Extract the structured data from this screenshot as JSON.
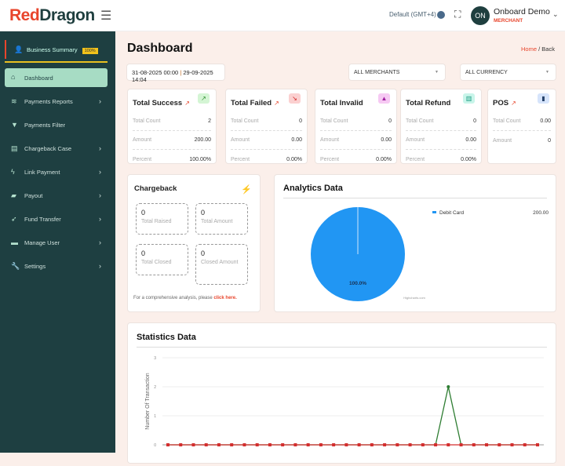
{
  "header": {
    "logo": "RedDragon",
    "timezone": "Default (GMT+4)",
    "user_initials": "ON",
    "user_name": "Onboard Demo",
    "user_role": "MERCHANT"
  },
  "sidebar": {
    "business_summary": "Business Summary",
    "badge": "100%",
    "dashboard": "Dashboard",
    "items": [
      {
        "label": "Payments Reports",
        "icon": "layers-icon",
        "chevron": true
      },
      {
        "label": "Payments Filter",
        "icon": "filter-icon",
        "chevron": false
      },
      {
        "label": "Chargeback Case",
        "icon": "document-icon",
        "chevron": true
      },
      {
        "label": "Link Payment",
        "icon": "bolt-icon",
        "chevron": true
      },
      {
        "label": "Payout",
        "icon": "bag-icon",
        "chevron": true
      },
      {
        "label": "Fund Transfer",
        "icon": "rocket-icon",
        "chevron": true
      },
      {
        "label": "Manage User",
        "icon": "briefcase-icon",
        "chevron": true
      },
      {
        "label": "Settings",
        "icon": "wrench-icon",
        "chevron": true
      }
    ]
  },
  "page": {
    "title": "Dashboard",
    "breadcrumb_home": "Home",
    "breadcrumb_current": "/ Back",
    "date_from": "31-08-2025 00:00",
    "date_sep": "|",
    "date_to": "29-09-2025 14:04",
    "merchant_select": "ALL MERCHANTS",
    "currency_select": "ALL CURRENCY"
  },
  "cards": [
    {
      "title": "Total Success",
      "ext": true,
      "icon_color": "#d4f5d4",
      "icon_fg": "#2a8a2a",
      "icon": "↗",
      "rows": [
        [
          "Total Count",
          "2"
        ],
        [
          "Amount",
          "200.00"
        ],
        [
          "Percent",
          "100.00%"
        ]
      ]
    },
    {
      "title": "Total Failed",
      "ext": true,
      "icon_color": "#fbd0d0",
      "icon_fg": "#d02020",
      "icon": "↘",
      "rows": [
        [
          "Total Count",
          "0"
        ],
        [
          "Amount",
          "0.00"
        ],
        [
          "Percent",
          "0.00%"
        ]
      ]
    },
    {
      "title": "Total Invalid",
      "ext": false,
      "icon_color": "#f6c9f3",
      "icon_fg": "#a020a0",
      "icon": "▲",
      "rows": [
        [
          "Total Count",
          "0"
        ],
        [
          "Amount",
          "0.00"
        ],
        [
          "Percent",
          "0.00%"
        ]
      ]
    },
    {
      "title": "Total Refund",
      "ext": false,
      "icon_color": "#c9f5ea",
      "icon_fg": "#1a9a80",
      "icon": "▥",
      "rows": [
        [
          "Total Count",
          "0"
        ],
        [
          "Amount",
          "0.00"
        ],
        [
          "Percent",
          "0.00%"
        ]
      ]
    },
    {
      "title": "POS",
      "ext": true,
      "icon_color": "#d6e4fb",
      "icon_fg": "#24406a",
      "icon": "▮",
      "rows": [
        [
          "Total Count",
          "0.00"
        ],
        [
          "Amount",
          "0"
        ]
      ]
    }
  ],
  "chargeback": {
    "title": "Chargeback",
    "boxes": [
      {
        "value": "0",
        "label": "Total Raised"
      },
      {
        "value": "0",
        "label": "Total Amount"
      },
      {
        "value": "0",
        "label": "Total Closed"
      },
      {
        "value": "0",
        "label": "Closed Amount"
      }
    ],
    "note": "For a comprehensive analysis, please",
    "link": "click here."
  },
  "chart_data": [
    {
      "type": "pie",
      "title": "Analytics Data",
      "series": [
        {
          "name": "Debit Card",
          "value": 200.0,
          "percent": "100.0%",
          "color": "#2196f3"
        }
      ],
      "legend_value": "200.00",
      "legend": "top-right",
      "credit": "Highcharts.com"
    },
    {
      "type": "line",
      "title": "Statistics Data",
      "ylabel": "Number Of Transaction",
      "ylim": [
        0,
        3
      ],
      "yticks": [
        "0",
        "1",
        "2",
        "3"
      ],
      "grid": true,
      "series": [
        {
          "color": "#2e7d32",
          "values": [
            0,
            0,
            0,
            0,
            0,
            0,
            0,
            0,
            0,
            0,
            0,
            0,
            0,
            0,
            0,
            0,
            0,
            0,
            0,
            0,
            0,
            0,
            2,
            0,
            0,
            0,
            0,
            0,
            0,
            0
          ]
        },
        {
          "color": "#d32f2f",
          "values": [
            0,
            0,
            0,
            0,
            0,
            0,
            0,
            0,
            0,
            0,
            0,
            0,
            0,
            0,
            0,
            0,
            0,
            0,
            0,
            0,
            0,
            0,
            0,
            0,
            0,
            0,
            0,
            0,
            0,
            0
          ]
        }
      ]
    }
  ]
}
